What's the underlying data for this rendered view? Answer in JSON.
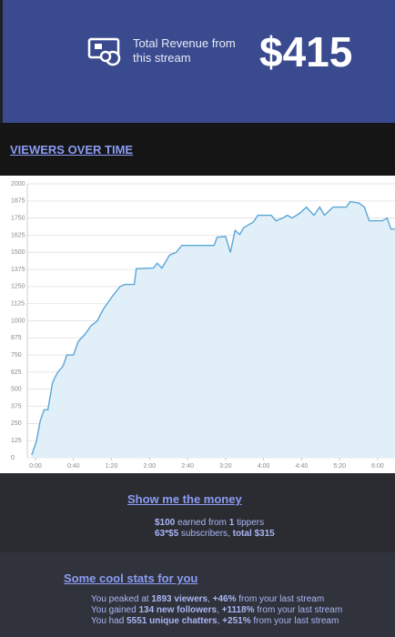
{
  "header": {
    "label": "Total Revenue from this stream",
    "amount": "$415"
  },
  "section_title": "VIEWERS OVER TIME",
  "chart_data": {
    "type": "line",
    "x": [
      -4,
      1,
      5,
      9,
      13,
      18,
      23,
      29,
      33,
      40,
      45,
      52,
      58,
      65,
      71,
      76,
      81,
      89,
      94,
      104,
      106,
      124,
      128,
      133,
      141,
      148,
      154,
      188,
      191,
      200,
      205,
      210,
      215,
      219,
      229,
      234,
      248,
      253,
      260,
      265,
      270,
      278,
      285,
      293,
      299,
      304,
      313,
      327,
      331,
      340,
      346,
      351,
      365,
      370,
      374,
      378
    ],
    "series": [
      {
        "color": "#5aa6d6",
        "values": [
          20,
          120,
          270,
          350,
          350,
          550,
          620,
          670,
          750,
          750,
          850,
          900,
          960,
          1000,
          1080,
          1130,
          1180,
          1250,
          1265,
          1265,
          1380,
          1385,
          1420,
          1385,
          1480,
          1500,
          1550,
          1550,
          1610,
          1615,
          1500,
          1660,
          1630,
          1680,
          1720,
          1770,
          1770,
          1730,
          1750,
          1770,
          1750,
          1785,
          1830,
          1770,
          1830,
          1770,
          1830,
          1830,
          1870,
          1860,
          1830,
          1730,
          1730,
          1750,
          1670,
          1670
        ]
      }
    ],
    "fill": "#e1eff9",
    "xlim": [
      -8.6,
      378.2
    ],
    "xticks": [
      {
        "value": 0,
        "label": "0:00"
      },
      {
        "value": 40,
        "label": "0:40"
      },
      {
        "value": 80,
        "label": "1:20"
      },
      {
        "value": 120,
        "label": "2:00"
      },
      {
        "value": 160,
        "label": "2:40"
      },
      {
        "value": 200,
        "label": "3:20"
      },
      {
        "value": 240,
        "label": "4:00"
      },
      {
        "value": 280,
        "label": "4:40"
      },
      {
        "value": 320,
        "label": "5:20"
      },
      {
        "value": 360,
        "label": "6:00"
      }
    ],
    "ylim": [
      0,
      2000
    ],
    "yticks": [
      0,
      125,
      250,
      375,
      500,
      625,
      750,
      875,
      1000,
      1125,
      1250,
      1375,
      1500,
      1625,
      1750,
      1875,
      2000
    ],
    "grid": true
  },
  "money": {
    "title": "Show me the money",
    "line1": [
      "$100",
      " earned from ",
      "1",
      " tippers"
    ],
    "line2": [
      "63*$5",
      " subscribers, ",
      "total $315"
    ]
  },
  "stats": {
    "title": "Some cool stats for you",
    "lines": [
      [
        "You peaked at ",
        "1893 viewers",
        ", ",
        "+46%",
        " from your last stream"
      ],
      [
        "You gained ",
        "134 new followers",
        ", ",
        "+1118%",
        " from your last stream"
      ],
      [
        "You had ",
        "5551 unique chatters",
        ", ",
        "+251%",
        " from your last stream"
      ]
    ]
  }
}
